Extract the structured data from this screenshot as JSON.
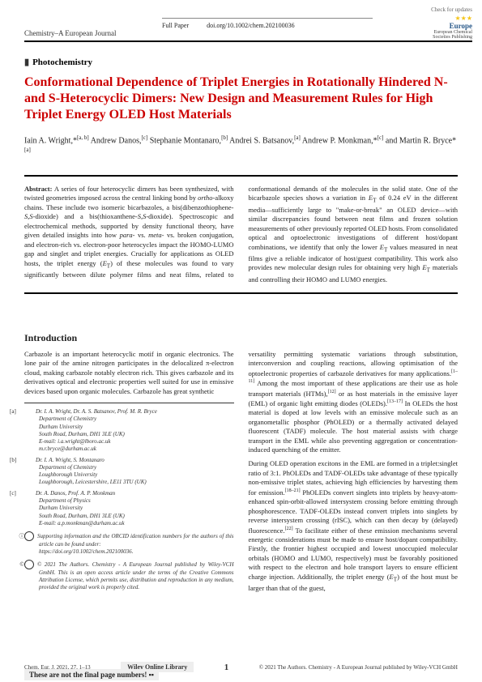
{
  "top_check": "Check for updates",
  "journal_name": "Chemistry–A European Journal",
  "header": {
    "type": "Full Paper",
    "doi": "doi.org/10.1002/chem.202100036"
  },
  "europe": {
    "name": "Europe",
    "sub1": "European Chemical",
    "sub2": "Societies Publishing"
  },
  "section_tag": "Photochemistry",
  "title": "Conformational Dependence of Triplet Energies in Rotationally Hindered N- and S-Heterocyclic Dimers: New Design and Measurement Rules for High Triplet Energy OLED Host Materials",
  "authors_html": "Iain A. Wright,*<sup>[a, b]</sup> Andrew Danos,<sup>[c]</sup> Stephanie Montanaro,<sup>[b]</sup> Andrei S. Batsanov,<sup>[a]</sup> Andrew P. Monkman,*<sup>[c]</sup> and Martin R. Bryce*<sup>[a]</sup>",
  "abstract": "<b>Abstract:</b> A series of four heterocyclic dimers has been synthesized, with twisted geometries imposed across the central linking bond by <i>ortho</i>-alkoxy chains. These include two isomeric bicarbazoles, a bis(dibenzothiophene-<i>S,S</i>-dioxide) and a bis(thioxanthene-<i>S,S</i>-dioxide). Spectroscopic and electrochemical methods, supported by density functional theory, have given detailed insights into how <i>para</i>- vs. <i>meta</i>- vs. broken conjugation, and electron-rich vs. electron-poor heterocycles impact the HOMO-LUMO gap and singlet and triplet energies. Crucially for applications as OLED hosts, the triplet energy (<i>E</i><sub>T</sub>) of these molecules was found to vary significantly between dilute polymer films and neat films, related to conformational demands of the molecules in the solid state. One of the bicarbazole species shows a variation in <i>E</i><sub>T</sub> of 0.24 eV in the different media—sufficiently large to \"make-or-break\" an OLED device—with similar discrepancies found between neat films and frozen solution measurements of other previously reported OLED hosts. From consolidated optical and optoelectronic investigations of different host/dopant combinations, we identify that only the lower <i>E</i><sub>T</sub> values measured in neat films give a reliable indicator of host/guest compatibility. This work also provides new molecular design rules for obtaining very high <i>E</i><sub>T</sub> materials and controlling their HOMO and LUMO energies.",
  "intro_heading": "Introduction",
  "body": {
    "p1": "Carbazole is an important heterocyclic motif in organic electronics. The lone pair of the amine nitrogen participates in the delocalized π-electron cloud, making carbazole notably electron rich. This gives carbazole and its derivatives optical and electronic properties well suited for use in emissive devices based upon organic molecules. Carbazole has great synthetic",
    "p2": "versatility permitting systematic variations through substitution, interconversion and coupling reactions, allowing optimisation of the optoelectronic properties of carbazole derivatives for many applications.<sup>[1–11]</sup> Among the most important of these applications are their use as hole transport materials (HTMs),<sup>[12]</sup> or as host materials in the emissive layer (EML) of organic light emitting diodes (OLEDs).<sup>[13–17]</sup> In OLEDs the host material is doped at low levels with an emissive molecule such as an organometallic phosphor (PhOLED) or a thermally activated delayed fluorescent (TADF) molecule. The host material assists with charge transport in the EML while also preventing aggregation or concentration-induced quenching of the emitter.",
    "p3": "During OLED operation excitons in the EML are formed in a triplet:singlet ratio of 3:1. PhOLEDs and TADF-OLEDs take advantage of these typically non-emissive triplet states, achieving high efficiencies by harvesting them for emission.<sup>[18–21]</sup> PhOLEDs convert singlets into triplets by heavy-atom-enhanced spin-orbit-allowed intersystem crossing before emitting through phosphorescence. TADF-OLEDs instead convert triplets into singlets by reverse intersystem crossing (rISC), which can then decay by (delayed) fluorescence.<sup>[22]</sup> To facilitate either of these emission mechanisms several energetic considerations must be made to ensure host/dopant compatibility. Firstly, the frontier highest occupied and lowest unoccupied molecular orbitals (HOMO and LUMO, respectively) must be favorably positioned with respect to the electron and hole transport layers to ensure efficient charge injection. Additionally, the triplet energy (<i>E</i><sub>T</sub>) of the host must be larger than that of the guest,"
  },
  "affiliations": {
    "a": {
      "lbl": "[a]",
      "text": "Dr. I. A. Wright, Dr. A. S. Batsanov, Prof. M. R. Bryce<br>Department of Chemistry<br>Durham University<br>South Road, Durham, DH1 3LE (UK)<br>E-mail: i.a.wright@lboro.ac.uk<br>m.r.bryce@durham.ac.uk"
    },
    "b": {
      "lbl": "[b]",
      "text": "Dr. I. A. Wright, S. Montanaro<br>Department of Chemistry<br>Loughborough University<br>Loughborough, Leicestershire, LE11 3TU (UK)"
    },
    "c": {
      "lbl": "[c]",
      "text": "Dr. A. Danos, Prof. A. P. Monkman<br>Department of Physics<br>Durham University<br>South Road, Durham, DH1 3LE (UK)<br>E-mail: a.p.monkman@durham.ac.uk"
    },
    "supp": "Supporting information and the ORCID identification numbers for the authors of this article can be found under:<br>https://doi.org/10.1002/chem.202100036.",
    "license": "© 2021 The Authors. Chemistry - A European Journal published by Wiley-VCH GmbH. This is an open access article under the terms of the Creative Commons Attribution License, which permits use, distribution and reproduction in any medium, provided the original work is properly cited."
  },
  "footer": {
    "left": "Chem. Eur. J. 2021, 27, 1–13",
    "mid": "Wiley Online Library",
    "page": "1",
    "right": "© 2021 The Authors. Chemistry - A European Journal published by Wiley-VCH GmbH",
    "warn": "These are not the final page numbers! ▪▪"
  }
}
